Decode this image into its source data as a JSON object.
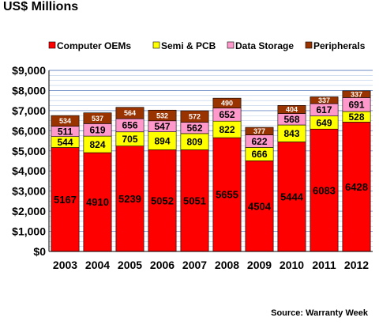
{
  "chart_data": {
    "type": "bar",
    "stacked": true,
    "title": "US$ Millions",
    "xlabel": "",
    "ylabel": "",
    "source": "Source: Warranty Week",
    "categories": [
      "2003",
      "2004",
      "2005",
      "2006",
      "2007",
      "2008",
      "2009",
      "2010",
      "2011",
      "2012"
    ],
    "ylim": [
      0,
      9000
    ],
    "yticks": [
      {
        "value": 0,
        "label": "$0"
      },
      {
        "value": 1000,
        "label": "$1,000"
      },
      {
        "value": 2000,
        "label": "$2,000"
      },
      {
        "value": 3000,
        "label": "$3,000"
      },
      {
        "value": 4000,
        "label": "$4,000"
      },
      {
        "value": 5000,
        "label": "$5,000"
      },
      {
        "value": 6000,
        "label": "$6,000"
      },
      {
        "value": 7000,
        "label": "$7,000"
      },
      {
        "value": 8000,
        "label": "$8,000"
      },
      {
        "value": 9000,
        "label": "$9,000"
      }
    ],
    "grid": true,
    "legend_position": "top",
    "series": [
      {
        "name": "Computer OEMs",
        "color": "#ff0000",
        "values": [
          5167,
          4910,
          5239,
          5052,
          5051,
          5655,
          4504,
          5444,
          6083,
          6428
        ]
      },
      {
        "name": "Semi & PCB",
        "color": "#ffff00",
        "values": [
          544,
          824,
          705,
          894,
          809,
          822,
          666,
          843,
          649,
          528
        ]
      },
      {
        "name": "Data Storage",
        "color": "#ff99cc",
        "values": [
          511,
          619,
          656,
          547,
          562,
          652,
          622,
          568,
          617,
          691
        ]
      },
      {
        "name": "Peripherals",
        "color": "#993300",
        "values": [
          534,
          537,
          564,
          532,
          572,
          490,
          377,
          404,
          337,
          337
        ]
      }
    ]
  }
}
